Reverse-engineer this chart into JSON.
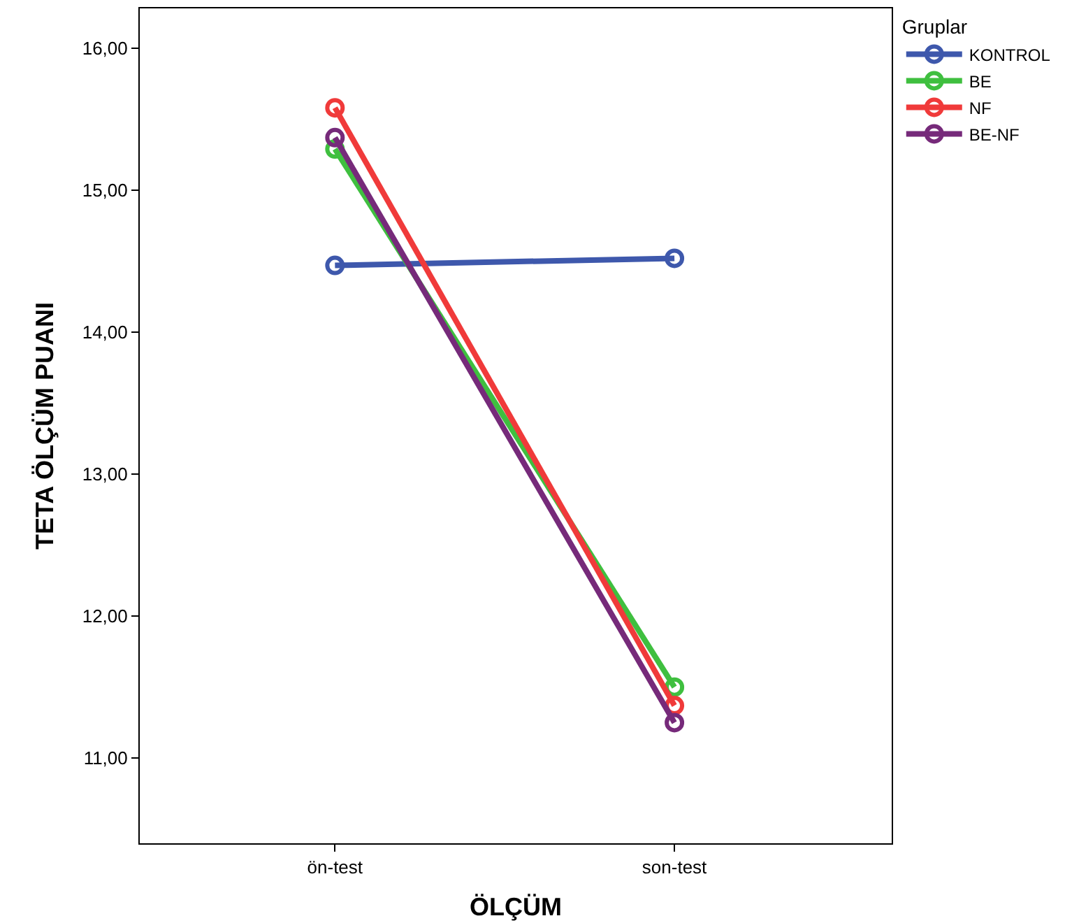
{
  "chart_data": {
    "type": "line",
    "xlabel": "ÖLÇÜM",
    "ylabel": "TETA ÖLÇÜM PUANI",
    "legend_title": "Gruplar",
    "legend": "right",
    "marker": "circle",
    "line_style": "solid",
    "categories": [
      "ön-test",
      "son-test"
    ],
    "ylim": [
      10.4,
      16.28
    ],
    "yticks": [
      {
        "value": 11,
        "label": "11,00"
      },
      {
        "value": 12,
        "label": "12,00"
      },
      {
        "value": 13,
        "label": "13,00"
      },
      {
        "value": 14,
        "label": "14,00"
      },
      {
        "value": 15,
        "label": "15,00"
      },
      {
        "value": 16,
        "label": "16,00"
      }
    ],
    "series": [
      {
        "name": "KONTROL",
        "color": "#3e58ac",
        "values": [
          14.47,
          14.52
        ]
      },
      {
        "name": "BE",
        "color": "#3fbf3f",
        "values": [
          15.29,
          11.5
        ]
      },
      {
        "name": "NF",
        "color": "#f03a3a",
        "values": [
          15.58,
          11.37
        ]
      },
      {
        "name": "BE-NF",
        "color": "#762a7a",
        "values": [
          15.37,
          11.25
        ]
      }
    ]
  }
}
